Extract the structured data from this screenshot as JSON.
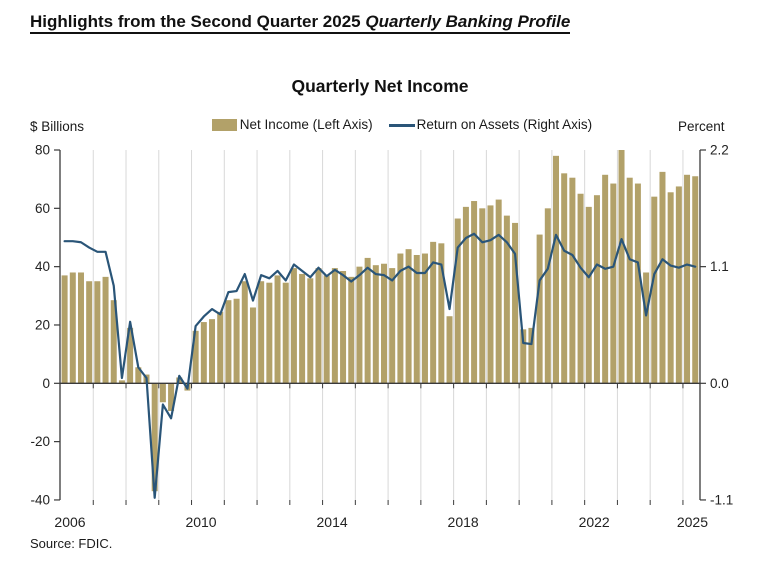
{
  "header": {
    "title_regular": "Highlights from the Second Quarter 2025 ",
    "title_italic": "Quarterly Banking Profile"
  },
  "chart": {
    "title": "Quarterly Net Income",
    "left_axis_label": "$ Billions",
    "right_axis_label": "Percent",
    "legend": [
      {
        "label": "Net Income (Left Axis)",
        "swatch": "bar-swatch-icon",
        "color": "#b2a169"
      },
      {
        "label": "Return on Assets (Right Axis)",
        "swatch": "line-swatch-icon",
        "color": "#2a5578"
      }
    ],
    "source": "Source: FDIC."
  },
  "chart_data": {
    "type": "bar+line",
    "title": "Quarterly Net Income",
    "x": [
      "2006Q1",
      "2006Q2",
      "2006Q3",
      "2006Q4",
      "2007Q1",
      "2007Q2",
      "2007Q3",
      "2007Q4",
      "2008Q1",
      "2008Q2",
      "2008Q3",
      "2008Q4",
      "2009Q1",
      "2009Q2",
      "2009Q3",
      "2009Q4",
      "2010Q1",
      "2010Q2",
      "2010Q3",
      "2010Q4",
      "2011Q1",
      "2011Q2",
      "2011Q3",
      "2011Q4",
      "2012Q1",
      "2012Q2",
      "2012Q3",
      "2012Q4",
      "2013Q1",
      "2013Q2",
      "2013Q3",
      "2013Q4",
      "2014Q1",
      "2014Q2",
      "2014Q3",
      "2014Q4",
      "2015Q1",
      "2015Q2",
      "2015Q3",
      "2015Q4",
      "2016Q1",
      "2016Q2",
      "2016Q3",
      "2016Q4",
      "2017Q1",
      "2017Q2",
      "2017Q3",
      "2017Q4",
      "2018Q1",
      "2018Q2",
      "2018Q3",
      "2018Q4",
      "2019Q1",
      "2019Q2",
      "2019Q3",
      "2019Q4",
      "2020Q1",
      "2020Q2",
      "2020Q3",
      "2020Q4",
      "2021Q1",
      "2021Q2",
      "2021Q3",
      "2021Q4",
      "2022Q1",
      "2022Q2",
      "2022Q3",
      "2022Q4",
      "2023Q1",
      "2023Q2",
      "2023Q3",
      "2023Q4",
      "2024Q1",
      "2024Q2",
      "2024Q3",
      "2024Q4",
      "2025Q1",
      "2025Q2"
    ],
    "series": [
      {
        "name": "Net Income (Left Axis)",
        "type": "bar",
        "axis": "left",
        "color": "#b2a169",
        "values": [
          37,
          38,
          38,
          35,
          35,
          36.5,
          28.5,
          1,
          19,
          5.5,
          3,
          -37,
          -6.5,
          -9.5,
          2,
          -2.5,
          18,
          21,
          22,
          24.5,
          28.5,
          29,
          35,
          26,
          35,
          34.5,
          37,
          34.5,
          39.5,
          37.5,
          36,
          39.5,
          37,
          39.5,
          38.5,
          36.5,
          40,
          43,
          40.5,
          41,
          39.5,
          44.5,
          46,
          44,
          44.5,
          48.5,
          48,
          23,
          56.5,
          60.5,
          62.5,
          60,
          61,
          63,
          57.5,
          55,
          18.5,
          19,
          51,
          60,
          78,
          72,
          70.5,
          65,
          60.5,
          64.5,
          71.5,
          68.5,
          80,
          70.5,
          68.5,
          38,
          64,
          72.5,
          65.5,
          67.5,
          71.5,
          71
        ]
      },
      {
        "name": "Return on Assets (Right Axis)",
        "type": "line",
        "axis": "right",
        "color": "#2a5578",
        "values": [
          1.34,
          1.34,
          1.33,
          1.28,
          1.24,
          1.24,
          0.92,
          0.05,
          0.58,
          0.15,
          0.05,
          -1.08,
          -0.2,
          -0.33,
          0.07,
          -0.05,
          0.54,
          0.63,
          0.7,
          0.65,
          0.86,
          0.87,
          1.03,
          0.78,
          1.02,
          0.99,
          1.06,
          0.97,
          1.12,
          1.06,
          1.0,
          1.09,
          1.01,
          1.07,
          1.02,
          0.96,
          1.02,
          1.09,
          1.03,
          1.02,
          0.97,
          1.06,
          1.1,
          1.04,
          1.04,
          1.14,
          1.12,
          0.7,
          1.28,
          1.37,
          1.41,
          1.33,
          1.35,
          1.4,
          1.33,
          1.22,
          0.38,
          0.37,
          0.97,
          1.08,
          1.4,
          1.25,
          1.21,
          1.09,
          1.0,
          1.12,
          1.08,
          1.1,
          1.36,
          1.17,
          1.14,
          0.64,
          1.03,
          1.17,
          1.11,
          1.09,
          1.12,
          1.1
        ]
      }
    ],
    "left_axis": {
      "range": [
        -40,
        80
      ],
      "ticks": [
        {
          "value": 80,
          "label": "80"
        },
        {
          "value": 60,
          "label": "60"
        },
        {
          "value": 40,
          "label": "40"
        },
        {
          "value": 20,
          "label": "20"
        },
        {
          "value": 0,
          "label": "0"
        },
        {
          "value": -20,
          "label": "-20"
        },
        {
          "value": -40,
          "label": "-40"
        }
      ]
    },
    "right_axis": {
      "range": [
        -1.1,
        2.2
      ],
      "ticks": [
        {
          "value": 2.2,
          "label": "2.2"
        },
        {
          "value": 1.1,
          "label": "1.1"
        },
        {
          "value": 0,
          "label": "0.0"
        },
        {
          "value": -1.1,
          "label": "-1.1"
        }
      ]
    },
    "x_ticks": [
      {
        "label": "2006",
        "year": 2006
      },
      {
        "label": "2010",
        "year": 2010
      },
      {
        "label": "2014",
        "year": 2014
      },
      {
        "label": "2018",
        "year": 2018
      },
      {
        "label": "2022",
        "year": 2022
      },
      {
        "label": "2025",
        "year": 2025
      }
    ],
    "grid": "vertical-yearly",
    "legend_position": "top",
    "style": {
      "gridline_color": "#d8d8d8",
      "axis_color": "#3a3a3a",
      "text_color": "#222222"
    }
  }
}
